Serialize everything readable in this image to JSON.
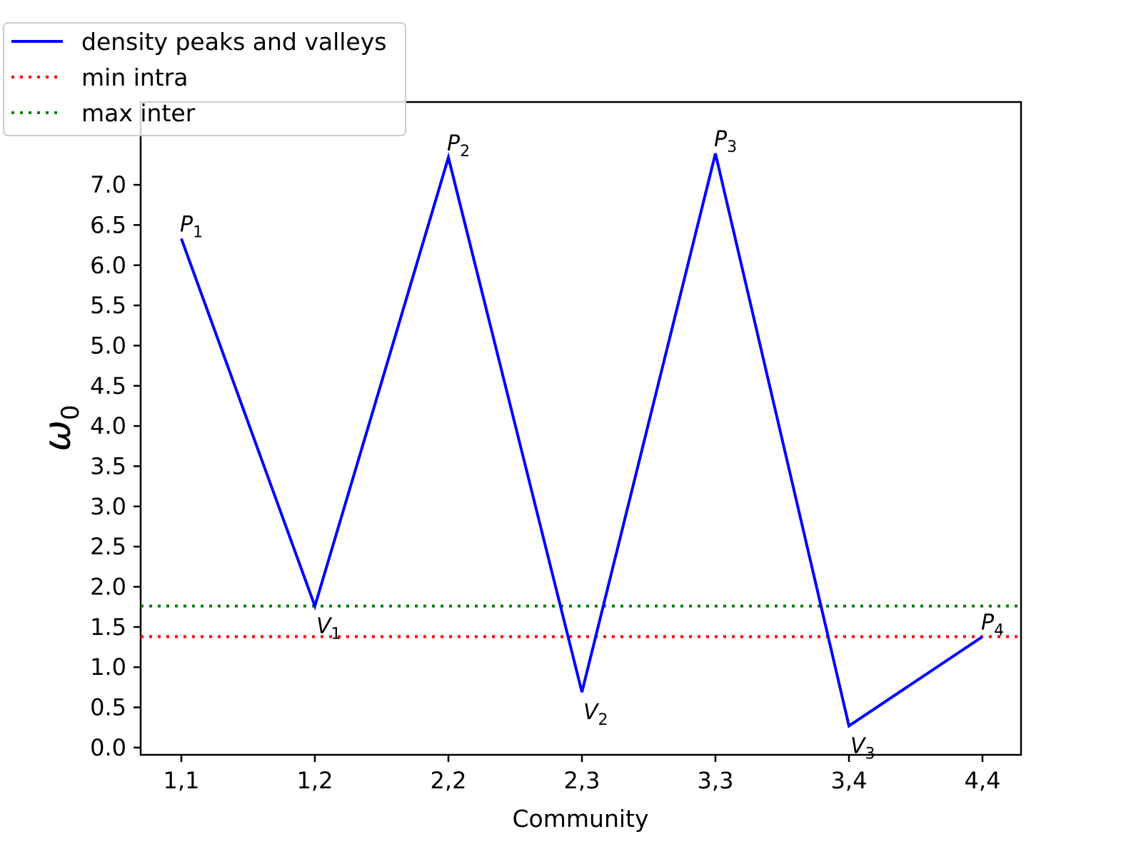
{
  "chart_data": {
    "type": "line",
    "xlabel": "Community",
    "ylabel": "ω",
    "ylabel_sub": "0",
    "categories": [
      "1,1",
      "1,2",
      "2,2",
      "2,3",
      "3,3",
      "3,4",
      "4,4"
    ],
    "yticks": [
      "0.0",
      "0.5",
      "1.0",
      "1.5",
      "2.0",
      "2.5",
      "3.0",
      "3.5",
      "4.0",
      "4.5",
      "5.0",
      "5.5",
      "6.0",
      "6.5",
      "7.0"
    ],
    "ylim": [
      -0.09,
      8.03
    ],
    "series": [
      {
        "name": "density peaks and valleys",
        "color": "#0000ff",
        "style": "solid",
        "values": [
          6.33,
          1.76,
          7.34,
          0.69,
          7.39,
          0.27,
          1.38
        ]
      }
    ],
    "hlines": [
      {
        "name": "min intra",
        "color": "#ff0000",
        "style": "dotted",
        "y": 1.38
      },
      {
        "name": "max inter",
        "color": "#008000",
        "style": "dotted",
        "y": 1.76
      }
    ],
    "point_labels": [
      {
        "letter": "P",
        "sub": "1",
        "index": 0
      },
      {
        "letter": "V",
        "sub": "1",
        "index": 1
      },
      {
        "letter": "P",
        "sub": "2",
        "index": 2
      },
      {
        "letter": "V",
        "sub": "2",
        "index": 3
      },
      {
        "letter": "P",
        "sub": "3",
        "index": 4
      },
      {
        "letter": "V",
        "sub": "3",
        "index": 5
      },
      {
        "letter": "P",
        "sub": "4",
        "index": 6
      }
    ],
    "legend_placement": "top-left",
    "grid": false
  }
}
